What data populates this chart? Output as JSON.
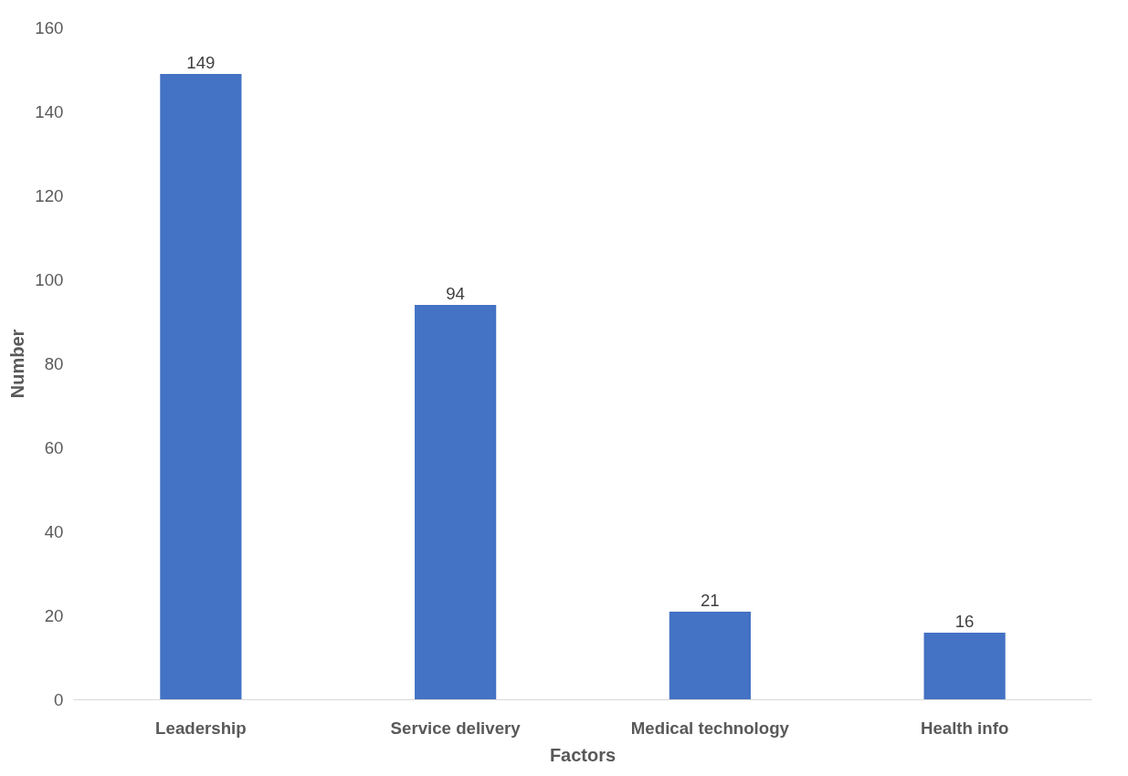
{
  "chart_data": {
    "type": "bar",
    "xlabel": "Factors",
    "ylabel": "Number",
    "categories": [
      "Leadership",
      "Service delivery",
      "Medical technology",
      "Health info"
    ],
    "values": [
      149,
      94,
      21,
      16
    ],
    "color": "#4472c4",
    "data_labels": true,
    "grid": false,
    "ylim": [
      0,
      160
    ],
    "yticks": [
      0,
      20,
      40,
      60,
      80,
      100,
      120,
      140,
      160
    ]
  }
}
